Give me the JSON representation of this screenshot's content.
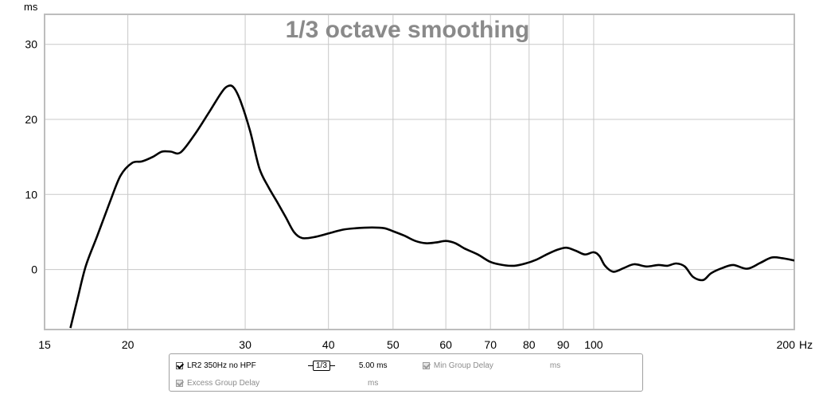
{
  "chart_data": {
    "type": "line",
    "title": "1/3 octave smoothing",
    "ylabel_unit": "ms",
    "xlabel_unit": "Hz",
    "x_scale": "log",
    "xlim": [
      15,
      200
    ],
    "ylim": [
      -8,
      34
    ],
    "grid": true,
    "x_ticks": [
      {
        "value": 15,
        "label": "15"
      },
      {
        "value": 20,
        "label": "20"
      },
      {
        "value": 30,
        "label": "30"
      },
      {
        "value": 40,
        "label": "40"
      },
      {
        "value": 50,
        "label": "50"
      },
      {
        "value": 60,
        "label": "60"
      },
      {
        "value": 70,
        "label": "70"
      },
      {
        "value": 80,
        "label": "80"
      },
      {
        "value": 90,
        "label": "90"
      },
      {
        "value": 100,
        "label": "100"
      },
      {
        "value": 200,
        "label": "200"
      }
    ],
    "y_ticks": [
      {
        "value": 30,
        "label": "30"
      },
      {
        "value": 20,
        "label": "20"
      },
      {
        "value": 10,
        "label": "10"
      },
      {
        "value": 0,
        "label": "0"
      }
    ],
    "series": [
      {
        "name": "LR2 350Hz no HPF",
        "color": "#000000",
        "x": [
          16.4,
          16.8,
          17.3,
          18.0,
          18.8,
          19.5,
          20.3,
          21.0,
          21.8,
          22.5,
          23.2,
          24.0,
          25.2,
          26.5,
          27.6,
          28.2,
          28.8,
          29.5,
          30.5,
          31.5,
          32.5,
          33.5,
          34.5,
          35.5,
          36.5,
          38.0,
          40.0,
          42.0,
          44.0,
          46.5,
          48.5,
          50.0,
          52.0,
          54.0,
          56.0,
          58.0,
          60.0,
          62.0,
          64.0,
          67.0,
          70.0,
          73.0,
          76.0,
          79.0,
          82.0,
          85.0,
          88.0,
          91.0,
          94.0,
          97.0,
          100.0,
          102.0,
          104.0,
          107.0,
          111.0,
          115.0,
          120.0,
          125.0,
          129.0,
          133.0,
          137.0,
          141.0,
          146.0,
          150.0,
          156.0,
          162.0,
          170.0,
          178.0,
          185.0,
          192.0,
          200.0
        ],
        "y": [
          -7.8,
          -4.0,
          0.5,
          4.5,
          9.0,
          12.5,
          14.2,
          14.4,
          15.0,
          15.7,
          15.7,
          15.6,
          18.0,
          21.0,
          23.5,
          24.4,
          24.3,
          22.5,
          18.5,
          13.5,
          11.0,
          9.0,
          7.0,
          5.0,
          4.2,
          4.3,
          4.8,
          5.3,
          5.5,
          5.6,
          5.5,
          5.1,
          4.5,
          3.8,
          3.5,
          3.6,
          3.8,
          3.5,
          2.8,
          2.0,
          1.0,
          0.6,
          0.5,
          0.8,
          1.3,
          2.0,
          2.6,
          2.9,
          2.5,
          2.0,
          2.3,
          1.8,
          0.5,
          -0.3,
          0.2,
          0.7,
          0.4,
          0.6,
          0.5,
          0.8,
          0.4,
          -1.0,
          -1.4,
          -0.5,
          0.2,
          0.6,
          0.1,
          0.9,
          1.6,
          1.5,
          1.2
        ]
      }
    ]
  },
  "legend": {
    "row1": {
      "series_checked": true,
      "series_label": "LR2 350Hz no HPF",
      "smoothing": "1/3",
      "delay_value": "5.00 ms",
      "min_group_delay_label": "Min Group Delay",
      "min_group_delay_unit": "ms"
    },
    "row2": {
      "excess_group_delay_label": "Excess Group Delay",
      "excess_group_delay_unit": "ms"
    }
  }
}
